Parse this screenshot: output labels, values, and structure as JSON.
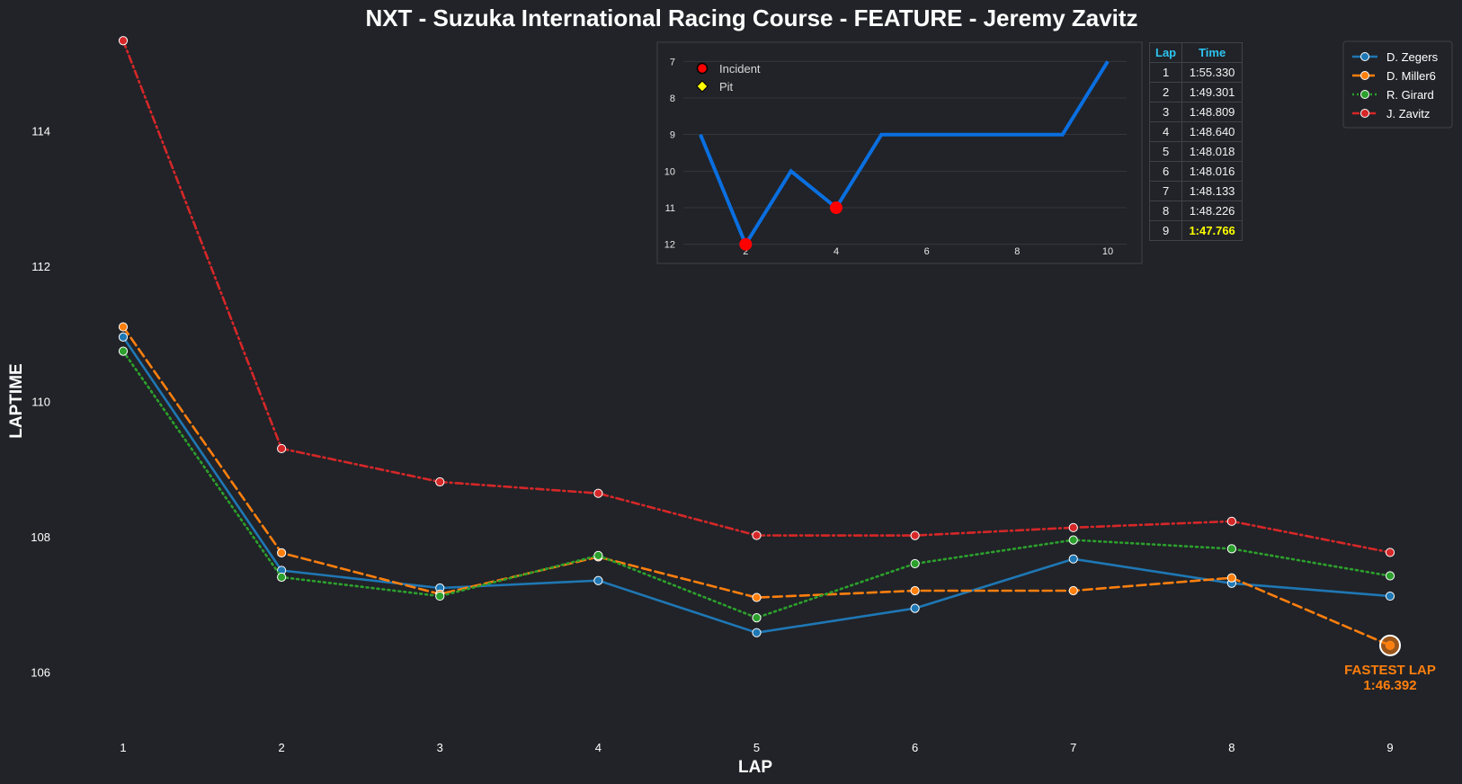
{
  "colors": {
    "background": "#212328",
    "zegers": "#1f77b4",
    "miller": "#ff7f0e",
    "girard": "#2ca02c",
    "zavitz": "#d62728",
    "position_line": "#0a6fe0",
    "incident": "#ff0000",
    "pit": "#ffff00",
    "table_header": "#2ec4f0",
    "best_time": "#ffff00",
    "fastest_lap": "#ff7f0e"
  },
  "chart_data": [
    {
      "type": "line",
      "title": "NXT - Suzuka International Racing Course - FEATURE - Jeremy Zavitz",
      "xlabel": "LAP",
      "ylabel": "LAPTIME",
      "x": [
        1,
        2,
        3,
        4,
        5,
        6,
        7,
        8,
        9
      ],
      "x_ticks": [
        "1",
        "2",
        "3",
        "4",
        "5",
        "6",
        "7",
        "8",
        "9"
      ],
      "y_ticks": [
        "106",
        "108",
        "110",
        "112",
        "114"
      ],
      "ylim": [
        105.3,
        115.4
      ],
      "grid": false,
      "legend_position": "top-right",
      "series": [
        {
          "name": "D. Zegers",
          "style": "solid",
          "values": [
            110.95,
            107.5,
            107.24,
            107.35,
            106.58,
            106.94,
            107.67,
            107.31,
            107.12
          ]
        },
        {
          "name": "D. Miller6",
          "style": "dashed",
          "values": [
            111.1,
            107.76,
            107.15,
            107.7,
            107.1,
            107.2,
            107.2,
            107.39,
            106.392
          ]
        },
        {
          "name": "R. Girard",
          "style": "dotted",
          "values": [
            110.74,
            107.4,
            107.12,
            107.72,
            106.8,
            107.6,
            107.95,
            107.82,
            107.42
          ]
        },
        {
          "name": "J. Zavitz",
          "style": "dashdot",
          "values": [
            115.33,
            109.301,
            108.809,
            108.64,
            108.018,
            108.016,
            108.133,
            108.226,
            107.766
          ]
        }
      ],
      "annotation": {
        "label": "FASTEST LAP",
        "value": "1:46.392",
        "series": "D. Miller6",
        "lap": 9,
        "laptime": 106.392
      }
    },
    {
      "type": "line",
      "title": "",
      "x": [
        1,
        2,
        3,
        4,
        5,
        6,
        7,
        8,
        9,
        10
      ],
      "values": [
        9,
        12,
        10,
        11,
        9,
        9,
        9,
        9,
        9,
        7
      ],
      "x_ticks": [
        "2",
        "4",
        "6",
        "8",
        "10"
      ],
      "y_ticks": [
        "7",
        "8",
        "9",
        "10",
        "11",
        "12"
      ],
      "ylim": [
        12.4,
        6.6
      ],
      "y_inverted": true,
      "grid": true,
      "incidents": [
        {
          "x": 2,
          "y": 12
        },
        {
          "x": 4,
          "y": 11
        }
      ],
      "pits": [],
      "legend": [
        "Incident",
        "Pit"
      ]
    }
  ],
  "lap_table": {
    "headers": [
      "Lap",
      "Time"
    ],
    "rows": [
      [
        "1",
        "1:55.330"
      ],
      [
        "2",
        "1:49.301"
      ],
      [
        "3",
        "1:48.809"
      ],
      [
        "4",
        "1:48.640"
      ],
      [
        "5",
        "1:48.018"
      ],
      [
        "6",
        "1:48.016"
      ],
      [
        "7",
        "1:48.133"
      ],
      [
        "8",
        "1:48.226"
      ],
      [
        "9",
        "1:47.766"
      ]
    ],
    "best_row": 8
  }
}
